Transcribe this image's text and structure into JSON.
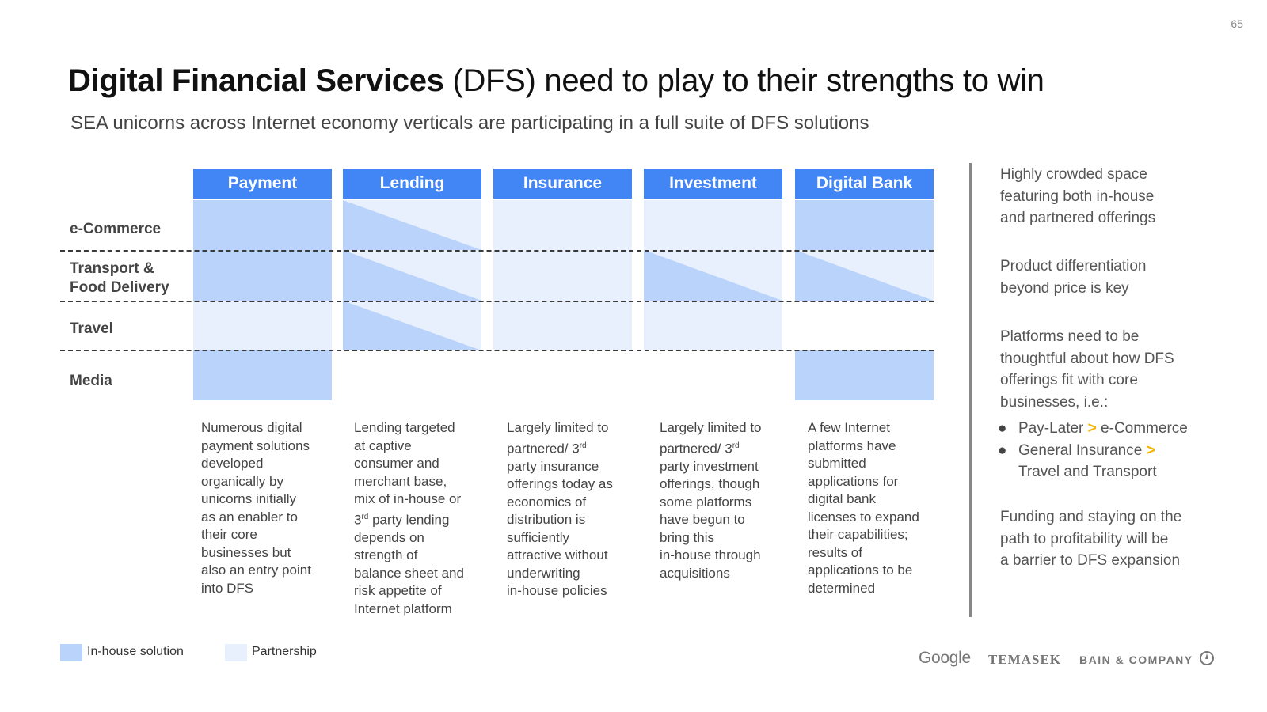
{
  "page_number": "65",
  "title": {
    "bold": "Digital Financial Services",
    "regular": " (DFS) need to play to their strengths to win"
  },
  "subtitle": "SEA unicorns across Internet economy verticals are participating in a full suite of DFS solutions",
  "columns": [
    "Payment",
    "Lending",
    "Insurance",
    "Investment",
    "Digital Bank"
  ],
  "rows": [
    "e-Commerce",
    "Transport & Food Delivery",
    "Travel",
    "Media"
  ],
  "row_labels": {
    "ecommerce": "e-Commerce",
    "transport_1": "Transport &",
    "transport_2": "Food Delivery",
    "travel": "Travel",
    "media": "Media"
  },
  "matrix": {
    "e-Commerce": [
      "In-house solution",
      "In-house solution / Partnership",
      "Partnership",
      "Partnership",
      "In-house solution"
    ],
    "Transport & Food Delivery": [
      "In-house solution",
      "In-house solution / Partnership",
      "Partnership",
      "In-house solution / Partnership",
      "In-house solution / Partnership"
    ],
    "Travel": [
      "Partnership",
      "In-house solution / Partnership",
      "Partnership",
      "Partnership",
      ""
    ],
    "Media": [
      "In-house solution",
      "",
      "",
      "",
      "In-house solution"
    ]
  },
  "descriptions": {
    "payment": [
      "Numerous digital",
      "payment solutions",
      "developed",
      "organically by",
      "unicorns initially",
      "as an enabler to",
      "their core",
      "businesses but",
      "also an entry point",
      "into DFS"
    ],
    "lending": {
      "l1": "Lending targeted",
      "l2": "at captive",
      "l3": "consumer and",
      "l4": "merchant base,",
      "l5": "mix of in-house or",
      "l6_pre": "3",
      "l6_sup": "rd",
      "l6_post": " party lending",
      "l7": "depends on",
      "l8": "strength of",
      "l9": "balance sheet and",
      "l10": "risk appetite of",
      "l11": "Internet platform"
    },
    "insurance": {
      "l1": "Largely limited to",
      "l2_pre": "partnered/ 3",
      "l2_sup": "rd",
      "l3": "party insurance",
      "l4": "offerings today as",
      "l5": "economics of",
      "l6": "distribution is",
      "l7": "sufficiently",
      "l8": "attractive without",
      "l9": "underwriting",
      "l10": "in-house policies"
    },
    "investment": {
      "l1": "Largely limited to",
      "l2_pre": "partnered/ 3",
      "l2_sup": "rd",
      "l3": "party investment",
      "l4": "offerings, though",
      "l5": "some platforms",
      "l6": "have begun to",
      "l7": "bring this",
      "l8": "in-house through",
      "l9": "acquisitions"
    },
    "digital_bank": [
      "A few Internet",
      "platforms have",
      "submitted",
      "applications for",
      "digital bank",
      "licenses to expand",
      "their capabilities;",
      "results of",
      "applications to be",
      "determined"
    ]
  },
  "sidebar": {
    "p1": [
      "Highly crowded space",
      "featuring both in-house",
      "and partnered offerings"
    ],
    "p2": [
      "Product differentiation",
      "beyond price is key"
    ],
    "p3": [
      "Platforms need to be",
      "thoughtful about how DFS",
      "offerings fit with core",
      "businesses, i.e.:"
    ],
    "bullet_dot": "●",
    "arrow": ">",
    "b1_a": "Pay-Later",
    "b1_b": "e-Commerce",
    "b2_a": "General Insurance",
    "b2_b": "Travel and Transport",
    "p4": [
      "Funding and staying on the",
      "path to profitability will be",
      "a barrier to DFS expansion"
    ]
  },
  "legend": {
    "inhouse": "In-house solution",
    "partner": "Partnership"
  },
  "colors": {
    "header": "#4285f4",
    "inhouse": "#bad3fb",
    "partnership": "#e8f0fd",
    "bullet_arrow": "#f4b400"
  },
  "logos": {
    "google": "Google",
    "temasek": "TEMASEK",
    "bain": "BAIN & COMPANY"
  }
}
